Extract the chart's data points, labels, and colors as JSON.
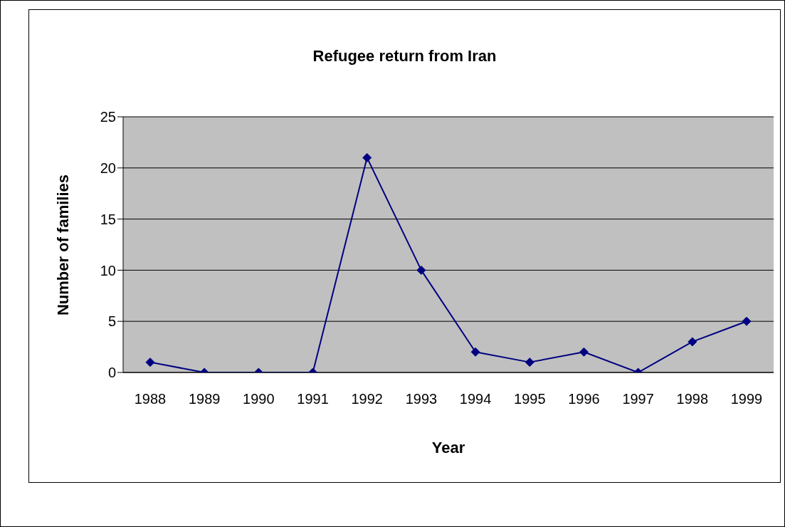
{
  "chart_data": {
    "type": "line",
    "title": "Refugee return from Iran",
    "xlabel": "Year",
    "ylabel": "Number of families",
    "categories": [
      "1988",
      "1989",
      "1990",
      "1991",
      "1992",
      "1993",
      "1994",
      "1995",
      "1996",
      "1997",
      "1998",
      "1999"
    ],
    "values": [
      1,
      0,
      0,
      0,
      21,
      10,
      2,
      1,
      2,
      0,
      3,
      5
    ],
    "color": "#000080",
    "marker": "diamond",
    "line_style": "solid",
    "ylim": [
      0,
      25
    ],
    "yticks": [
      0,
      5,
      10,
      15,
      20,
      25
    ],
    "grid": "y"
  }
}
